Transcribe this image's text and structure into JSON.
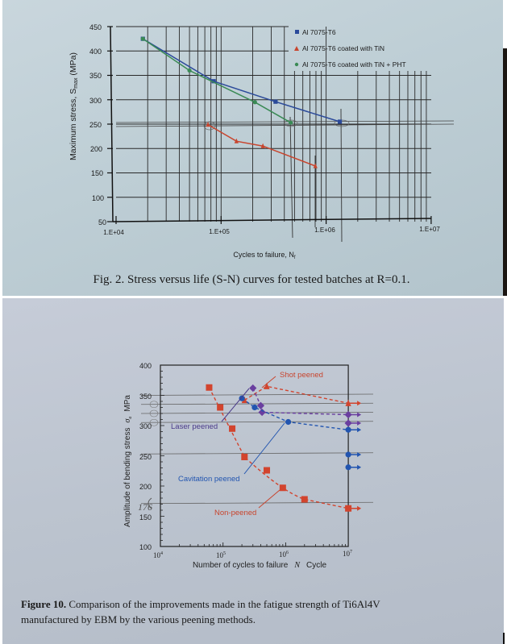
{
  "chart_data": [
    {
      "type": "line",
      "title": "Fig. 2. Stress versus life (S-N) curves for tested batches at R=0.1.",
      "xlabel": "Cycles to failure, N_f",
      "ylabel": "Maximum stress, S_max (MPa)",
      "xscale": "log",
      "xlim": [
        10000,
        10000000
      ],
      "ylim": [
        50,
        450
      ],
      "xticks": [
        "1.E+04",
        "1.E+05",
        "1.E+06",
        "1.E+07"
      ],
      "yticks": [
        50,
        100,
        150,
        200,
        250,
        300,
        350,
        400,
        450
      ],
      "grid": true,
      "legend_position": "upper right",
      "series": [
        {
          "name": "Al 7075-T6",
          "marker": "square",
          "color": "#2b4a9a",
          "points": [
            [
              18000,
              425
            ],
            [
              85000,
              338
            ],
            [
              330000,
              296
            ],
            [
              1350000,
              255
            ]
          ]
        },
        {
          "name": "Al 7075-T6 coated with TiN",
          "marker": "triangle",
          "color": "#c8452e",
          "points": [
            [
              75000,
              249
            ],
            [
              140000,
              215
            ],
            [
              250000,
              205
            ],
            [
              790000,
              164
            ]
          ]
        },
        {
          "name": "Al 7075-T6 coated with TiN + PHT",
          "marker": "circle",
          "color": "#3a8a55",
          "points": [
            [
              18000,
              425
            ],
            [
              50000,
              360
            ],
            [
              210000,
              295
            ],
            [
              460000,
              253
            ]
          ]
        }
      ]
    },
    {
      "type": "scatter",
      "title": "Figure 10. Comparison of the improvements made in the fatigue strength of Ti6Al4V manufactured by EBM by the various peening methods.",
      "xlabel": "Number of cycles to failure N Cycle",
      "ylabel": "Amplitude of bending stress σa MPa",
      "xscale": "log",
      "xlim": [
        10000,
        10000000
      ],
      "ylim": [
        100,
        400
      ],
      "xticks": [
        "10^4",
        "10^5",
        "10^6",
        "10^7"
      ],
      "yticks": [
        100,
        150,
        200,
        250,
        300,
        350,
        400
      ],
      "grid": false,
      "annotations": [
        "Shot peened",
        "Laser peened",
        "Cavitation peened",
        "Non-peened",
        "176 (handwritten)"
      ],
      "series": [
        {
          "name": "Non-peened",
          "marker": "square",
          "color": "#d2442e",
          "points": [
            [
              60000,
              363
            ],
            [
              90000,
              330
            ],
            [
              140000,
              295
            ],
            [
              220000,
              248
            ],
            [
              500000,
              226
            ],
            [
              900000,
              197
            ],
            [
              2000000,
              178
            ]
          ],
          "runouts": [
            [
              10000000,
              163
            ]
          ]
        },
        {
          "name": "Shot peened",
          "marker": "triangle",
          "color": "#d2442e",
          "points": [
            [
              220000,
              342
            ],
            [
              500000,
              365
            ]
          ],
          "runouts": [
            [
              10000000,
              337
            ]
          ]
        },
        {
          "name": "Laser peened",
          "marker": "diamond",
          "color": "#6a3fa0",
          "points": [
            [
              300000,
              362
            ],
            [
              400000,
              333
            ],
            [
              420000,
              322
            ]
          ],
          "runouts": [
            [
              10000000,
              318
            ],
            [
              10000000,
              304
            ]
          ]
        },
        {
          "name": "Cavitation peened",
          "marker": "circle",
          "color": "#2255b0",
          "points": [
            [
              200000,
              345
            ],
            [
              320000,
              330
            ],
            [
              1100000,
              306
            ]
          ],
          "runouts": [
            [
              10000000,
              293
            ],
            [
              10000000,
              252
            ],
            [
              10000000,
              231
            ]
          ]
        }
      ]
    }
  ],
  "fig2": {
    "y_ticks": [
      "450",
      "400",
      "350",
      "300",
      "250",
      "200",
      "150",
      "100",
      "50"
    ],
    "x_ticks": [
      "1.E+04",
      "1.E+05",
      "1.E+06",
      "1.E+07"
    ],
    "ylabel_main": "Maximum stress, S",
    "ylabel_sub": "max",
    "ylabel_unit": " (MPa)",
    "xlabel_main": "Cycles to failure, N",
    "xlabel_sub": "f",
    "legend": [
      "Al 7075-T6",
      "Al 7075-T6 coated with TiN",
      "Al 7075-T6 coated with TiN + PHT"
    ],
    "caption": "Fig. 2. Stress versus life (S-N) curves for tested batches at R=0.1."
  },
  "fig10": {
    "y_ticks": [
      "400",
      "350",
      "300",
      "250",
      "200",
      "150",
      "100"
    ],
    "x_ticks_base": [
      "10",
      "10",
      "10",
      "10"
    ],
    "x_ticks_exp": [
      "4",
      "5",
      "6",
      "7"
    ],
    "ylabel": "Amplitude of bending stress",
    "ylabel_sym": "σ",
    "ylabel_symsub": "a",
    "ylabel_unit": "MPa",
    "xlabel_pre": "Number of cycles to failure",
    "xlabel_sym": "N",
    "xlabel_post": "Cycle",
    "label_shot": "Shot peened",
    "label_laser": "Laser peened",
    "label_cav": "Cavitation peened",
    "label_non": "Non-peened",
    "handwritten": "176",
    "caption_bold": "Figure 10.",
    "caption_line1": " Comparison of the improvements made in the fatigue strength of Ti6Al4V",
    "caption_line2": "manufactured by EBM by the various peening methods."
  }
}
